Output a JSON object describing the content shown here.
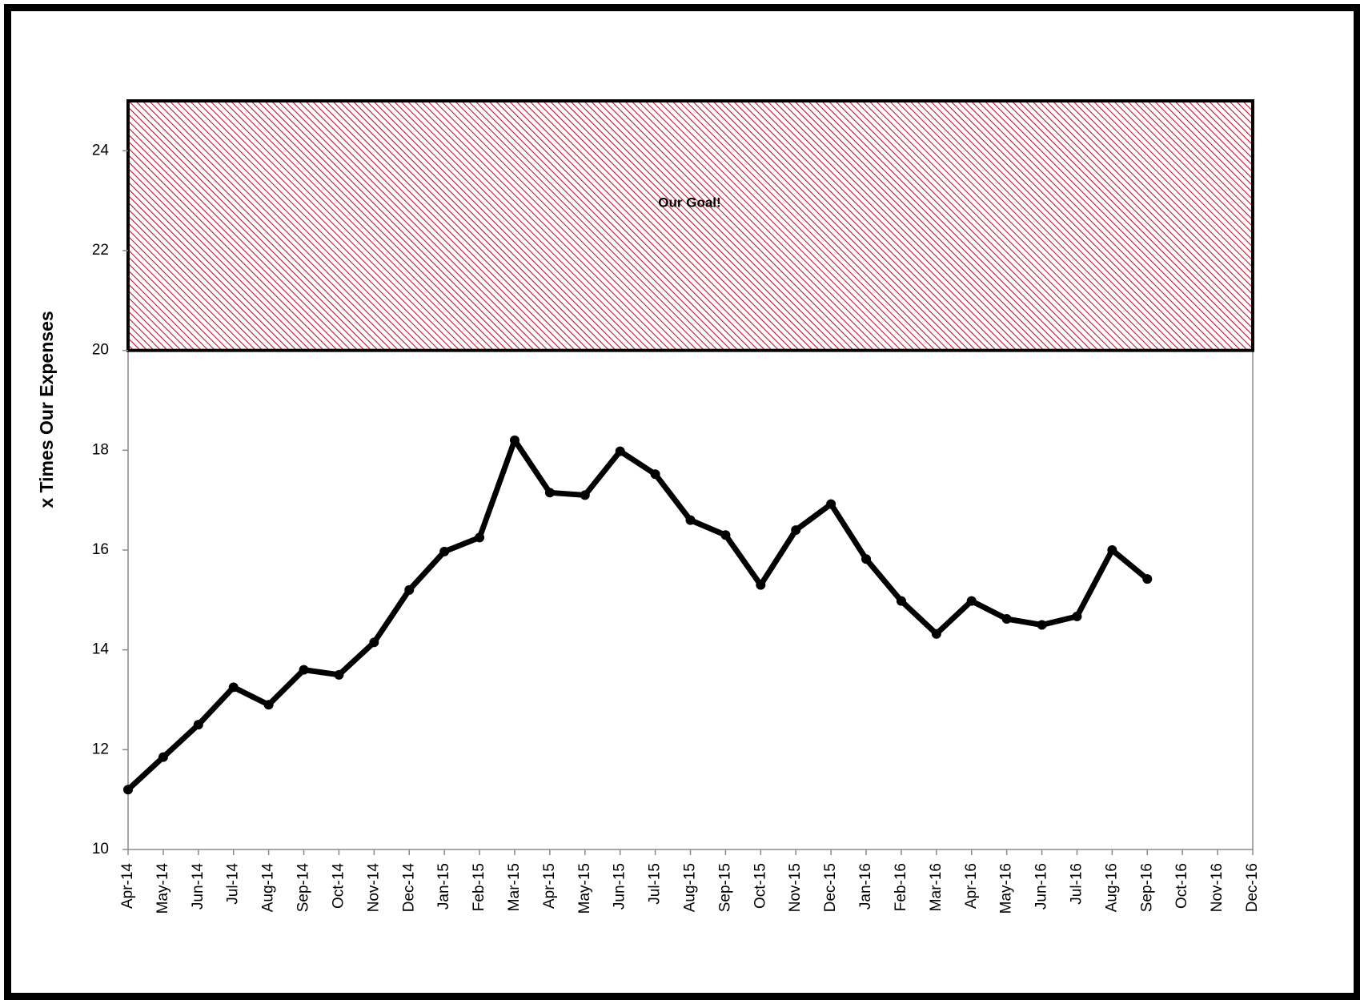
{
  "chart_data": {
    "type": "line",
    "ylabel": "x Times Our Expenses",
    "xlabel": "",
    "title": "",
    "ylim": [
      10,
      25
    ],
    "yticks": [
      10,
      12,
      14,
      16,
      18,
      20,
      22,
      24
    ],
    "grid": false,
    "categories": [
      "Apr-14",
      "May-14",
      "Jun-14",
      "Jul-14",
      "Aug-14",
      "Sep-14",
      "Oct-14",
      "Nov-14",
      "Dec-14",
      "Jan-15",
      "Feb-15",
      "Mar-15",
      "Apr-15",
      "May-15",
      "Jun-15",
      "Jul-15",
      "Aug-15",
      "Sep-15",
      "Oct-15",
      "Nov-15",
      "Dec-15",
      "Jan-16",
      "Feb-16",
      "Mar-16",
      "Apr-16",
      "May-16",
      "Jun-16",
      "Jul-16",
      "Aug-16",
      "Sep-16",
      "Oct-16",
      "Nov-16",
      "Dec-16"
    ],
    "series": [
      {
        "values": [
          11.2,
          11.85,
          12.5,
          13.25,
          12.9,
          13.6,
          13.5,
          14.15,
          15.2,
          15.97,
          16.25,
          18.2,
          17.15,
          17.1,
          17.98,
          17.52,
          16.6,
          16.3,
          15.3,
          16.4,
          16.92,
          15.82,
          14.98,
          14.32,
          14.98,
          14.62,
          14.5,
          14.67,
          16.0,
          15.42,
          null,
          null,
          null
        ],
        "color": "#000000"
      }
    ],
    "goal_band": {
      "label": "Our Goal!",
      "from": 20,
      "to": 25,
      "hatch_color": "#c8102e"
    }
  }
}
